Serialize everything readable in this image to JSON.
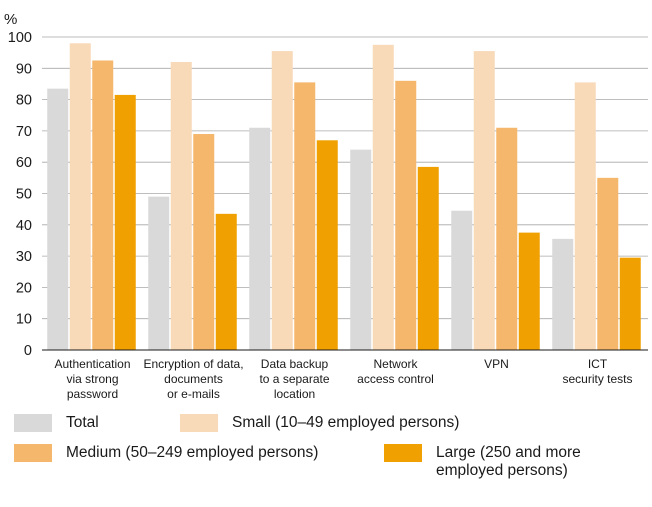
{
  "chart_data": {
    "type": "bar",
    "ylabel": "%",
    "ylim": [
      0,
      100
    ],
    "yticks": [
      0,
      10,
      20,
      30,
      40,
      50,
      60,
      70,
      80,
      90,
      100
    ],
    "grid": true,
    "legend_position": "bottom",
    "categories": [
      "Authentication\nvia strong\npassword",
      "Encryption of data,\ndocuments\nor e-mails",
      "Data backup\nto a separate\nlocation",
      "Network\naccess control",
      "VPN",
      "ICT\nsecurity tests"
    ],
    "series": [
      {
        "name": "Total",
        "color": "#d9d9d9",
        "values": [
          83.5,
          49,
          71,
          64,
          44.5,
          35.5
        ]
      },
      {
        "name": "Small (10–49 employed persons)",
        "color": "#f8d9b8",
        "values": [
          98,
          92,
          95.5,
          97.5,
          95.5,
          85.5
        ]
      },
      {
        "name": "Medium (50–249 employed persons)",
        "color": "#f5b76c",
        "values": [
          92.5,
          69,
          85.5,
          86,
          71,
          55
        ]
      },
      {
        "name": "Large (250 and more\nemployed persons)",
        "color": "#f0a000",
        "values": [
          81.5,
          43.5,
          67,
          58.5,
          37.5,
          29.5
        ]
      }
    ]
  }
}
